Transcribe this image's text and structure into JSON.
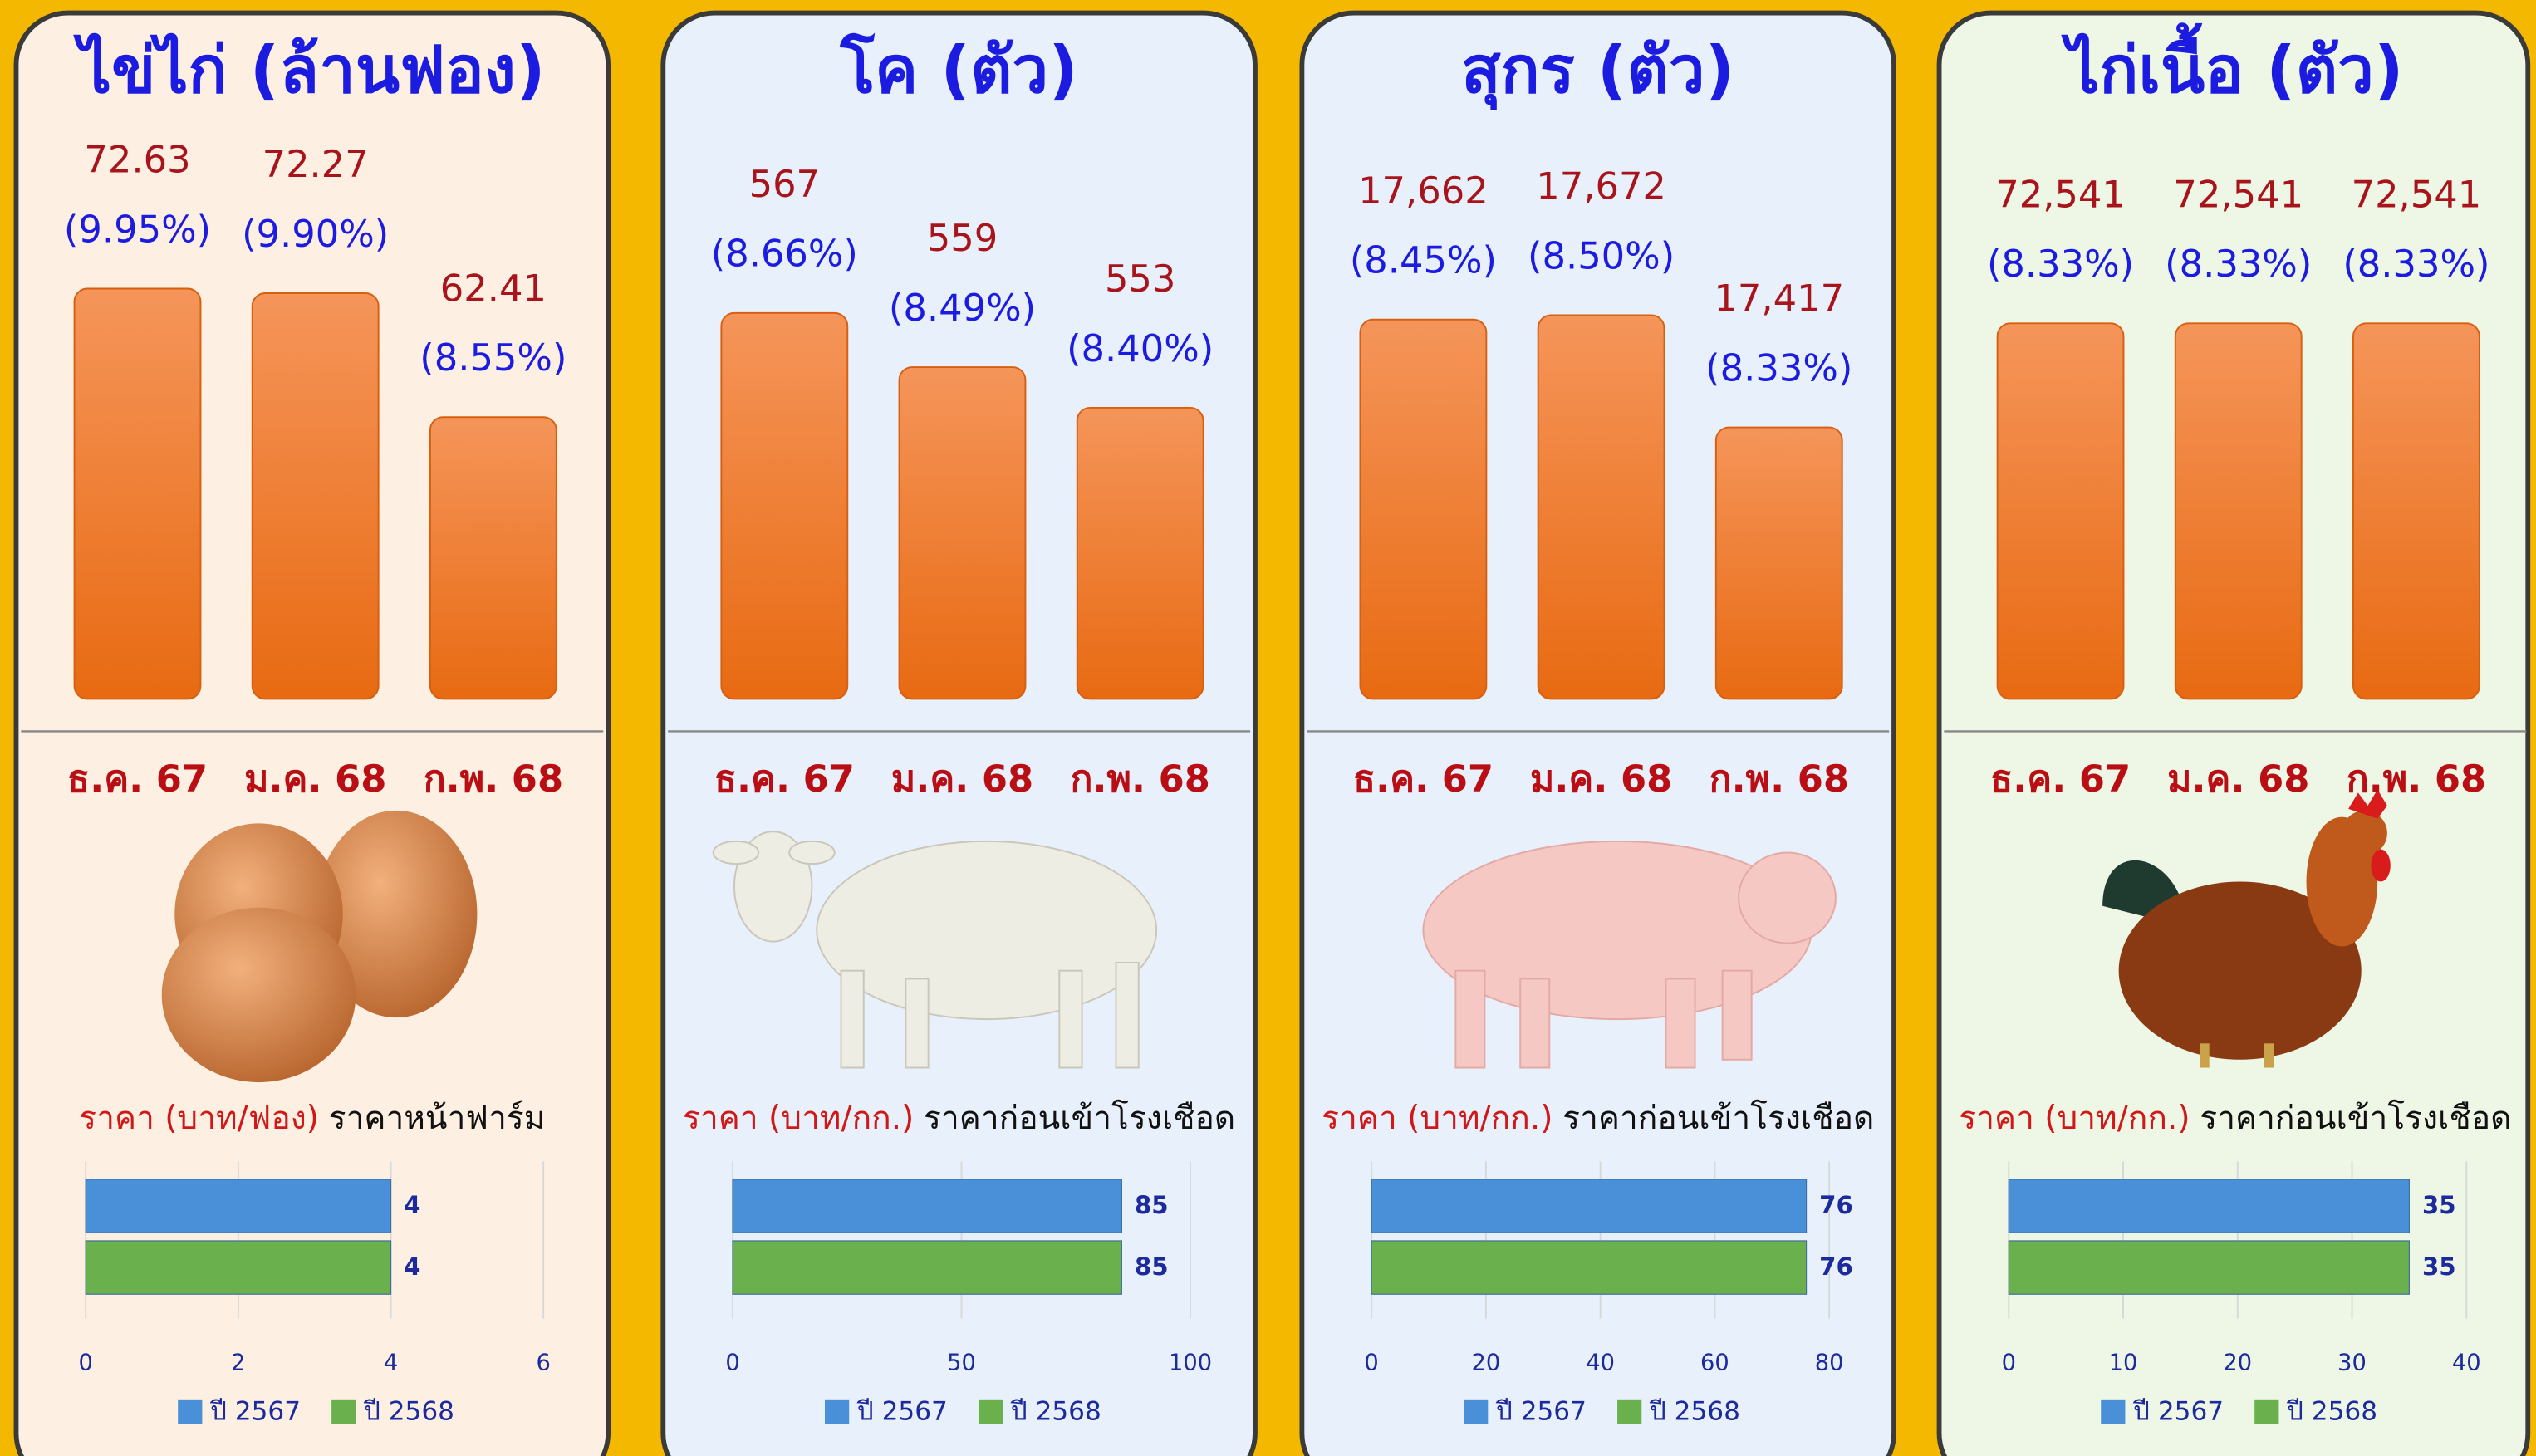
{
  "chart_data": [
    {
      "type": "bar",
      "title": "ไข่ไก่ (ล้านฟอง)",
      "categories": [
        "ธ.ค. 67",
        "ม.ค. 68",
        "ก.พ. 68"
      ],
      "values": [
        72.63,
        72.27,
        62.41
      ],
      "share_labels": [
        "(9.95%)",
        "(9.90%)",
        "(8.55%)"
      ],
      "color": "#f07f2a",
      "ylim": [
        40,
        75
      ]
    },
    {
      "type": "bar",
      "title": "โค (ตัว)",
      "categories": [
        "ธ.ค. 67",
        "ม.ค. 68",
        "ก.พ. 68"
      ],
      "values": [
        567,
        559,
        553
      ],
      "share_labels": [
        "(8.66%)",
        "(8.49%)",
        "(8.40%)"
      ],
      "color": "#f07f2a",
      "ylim": [
        510,
        575
      ]
    },
    {
      "type": "bar",
      "title": "สุกร (ตัว)",
      "categories": [
        "ธ.ค. 67",
        "ม.ค. 68",
        "ก.พ. 68"
      ],
      "values": [
        17662,
        17672,
        17417
      ],
      "value_labels": [
        "17,662",
        "17,672",
        "17,417"
      ],
      "share_labels": [
        "(8.45%)",
        "(8.50%)",
        "(8.33%)"
      ],
      "color": "#f07f2a",
      "ylim": [
        16800,
        17800
      ]
    },
    {
      "type": "bar",
      "title": "ไก่เนื้อ (ตัว)",
      "categories": [
        "ธ.ค. 67",
        "ม.ค. 68",
        "ก.พ. 68"
      ],
      "values": [
        72541,
        72541,
        72541
      ],
      "value_labels": [
        "72,541",
        "72,541",
        "72,541"
      ],
      "share_labels": [
        "(8.33%)",
        "(8.33%)",
        "(8.33%)"
      ],
      "color": "#f07f2a",
      "ylim": [
        0,
        85000
      ]
    },
    {
      "type": "hbar",
      "title": "ราคา (บาท/ฟอง)",
      "subtitle": "ราคาหน้าฟาร์ม",
      "series": [
        {
          "name": "ปี 2567",
          "color": "#4a90d9",
          "values": [
            4
          ]
        },
        {
          "name": "ปี 2568",
          "color": "#6ab04c",
          "values": [
            4
          ]
        }
      ],
      "xlim": [
        0,
        6
      ],
      "xticks": [
        0,
        2,
        4,
        6
      ],
      "grid": true
    },
    {
      "type": "hbar",
      "title": "ราคา (บาท/กก.)",
      "subtitle": "ราคาก่อนเข้าโรงเชือด",
      "series": [
        {
          "name": "ปี 2567",
          "color": "#4a90d9",
          "values": [
            85
          ]
        },
        {
          "name": "ปี 2568",
          "color": "#6ab04c",
          "values": [
            85
          ]
        }
      ],
      "xlim": [
        0,
        100
      ],
      "xticks": [
        0,
        50,
        100
      ],
      "grid": true
    },
    {
      "type": "hbar",
      "title": "ราคา (บาท/กก.)",
      "subtitle": "ราคาก่อนเข้าโรงเชือด",
      "series": [
        {
          "name": "ปี 2567",
          "color": "#4a90d9",
          "values": [
            76
          ]
        },
        {
          "name": "ปี 2568",
          "color": "#6ab04c",
          "values": [
            76
          ]
        }
      ],
      "xlim": [
        0,
        80
      ],
      "xticks": [
        0,
        20,
        40,
        60,
        80
      ],
      "grid": true
    },
    {
      "type": "hbar",
      "title": "ราคา (บาท/กก.)",
      "subtitle": "ราคาก่อนเข้าโรงเชือด",
      "series": [
        {
          "name": "ปี 2567",
          "color": "#4a90d9",
          "values": [
            35
          ]
        },
        {
          "name": "ปี 2568",
          "color": "#6ab04c",
          "values": [
            35
          ]
        }
      ],
      "xlim": [
        0,
        40
      ],
      "xticks": [
        0,
        10,
        20,
        30,
        40
      ],
      "grid": true
    }
  ]
}
